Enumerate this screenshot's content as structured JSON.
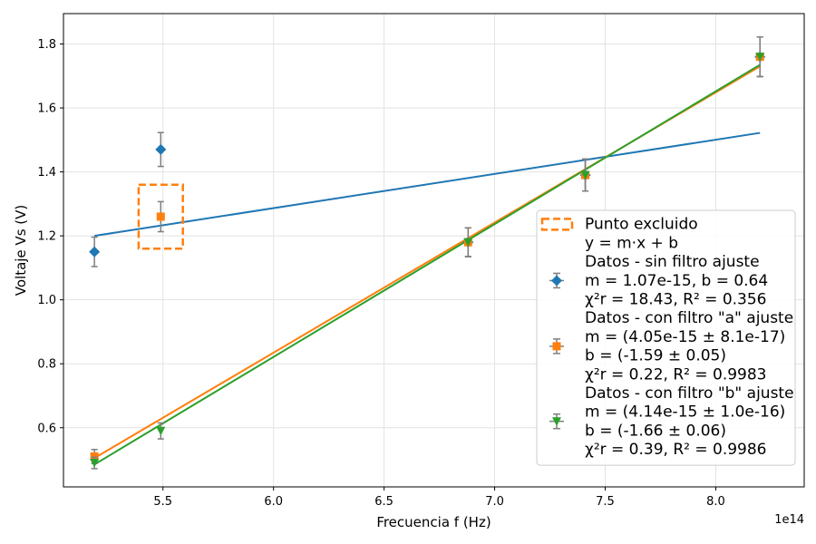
{
  "chart_data": {
    "type": "scatter",
    "xlabel": "Frecuencia f (Hz)",
    "ylabel": "Voltaje Vs (V)",
    "x_offset_label": "1e14",
    "xlim": [
      505000000000000.0,
      840000000000000.0
    ],
    "ylim": [
      0.415,
      1.895
    ],
    "xticks": [
      550000000000000.0,
      600000000000000.0,
      650000000000000.0,
      700000000000000.0,
      750000000000000.0,
      800000000000000.0
    ],
    "xtick_labels": [
      "5.5",
      "6.0",
      "6.5",
      "7.0",
      "7.5",
      "8.0"
    ],
    "yticks": [
      0.6,
      0.8,
      1.0,
      1.2,
      1.4,
      1.6,
      1.8
    ],
    "ytick_labels": [
      "0.6",
      "0.8",
      "1.0",
      "1.2",
      "1.4",
      "1.6",
      "1.8"
    ],
    "grid": true,
    "legend_position": "lower-right",
    "series": [
      {
        "name": "Datos - sin filtro ajuste",
        "color": "#1f77b4",
        "marker": "diamond",
        "points": [
          {
            "x": 519000000000000.0,
            "y": 1.15,
            "yerr": 0.046
          },
          {
            "x": 549000000000000.0,
            "y": 1.47,
            "yerr": 0.053
          },
          {
            "x": 688000000000000.0,
            "y": 1.18,
            "yerr": 0.045
          },
          {
            "x": 741000000000000.0,
            "y": 1.39,
            "yerr": 0.05
          },
          {
            "x": 820000000000000.0,
            "y": 1.76,
            "yerr": 0.062
          }
        ],
        "fit": {
          "x": [
            519000000000000.0,
            820000000000000.0
          ],
          "y": [
            1.2,
            1.522
          ]
        }
      },
      {
        "name": "Datos - con filtro \"a\" ajuste",
        "color": "#ff7f0e",
        "marker": "square",
        "points": [
          {
            "x": 519000000000000.0,
            "y": 0.51,
            "yerr": 0.022
          },
          {
            "x": 549000000000000.0,
            "y": 1.26,
            "yerr": 0.047
          },
          {
            "x": 688000000000000.0,
            "y": 1.18,
            "yerr": 0.045
          },
          {
            "x": 741000000000000.0,
            "y": 1.39,
            "yerr": 0.05
          },
          {
            "x": 820000000000000.0,
            "y": 1.76,
            "yerr": 0.062
          }
        ],
        "fit": {
          "x": [
            519000000000000.0,
            820000000000000.0
          ],
          "y": [
            0.505,
            1.73
          ]
        }
      },
      {
        "name": "Datos - con filtro \"b\" ajuste",
        "color": "#2ca02c",
        "marker": "triangle-down",
        "points": [
          {
            "x": 519000000000000.0,
            "y": 0.49,
            "yerr": 0.018
          },
          {
            "x": 549000000000000.0,
            "y": 0.59,
            "yerr": 0.025
          },
          {
            "x": 688000000000000.0,
            "y": 1.18,
            "yerr": 0.045
          },
          {
            "x": 741000000000000.0,
            "y": 1.39,
            "yerr": 0.05
          },
          {
            "x": 820000000000000.0,
            "y": 1.76,
            "yerr": 0.062
          }
        ],
        "fit": {
          "x": [
            519000000000000.0,
            820000000000000.0
          ],
          "y": [
            0.485,
            1.735
          ]
        }
      }
    ],
    "excluded_box": {
      "x": [
        539000000000000.0,
        559000000000000.0
      ],
      "y": [
        1.16,
        1.36
      ],
      "color": "#ff7f0e"
    },
    "legend": [
      {
        "kind": "box",
        "color": "#ff7f0e",
        "lines": [
          "Punto excluido"
        ]
      },
      {
        "kind": "text",
        "lines": [
          "y = m·x + b"
        ]
      },
      {
        "kind": "marker",
        "series": 0,
        "lines": [
          "Datos - sin filtro ajuste",
          "m = 1.07e-15, b = 0.64",
          "χ²r = 18.43, R² = 0.356"
        ]
      },
      {
        "kind": "marker",
        "series": 1,
        "lines": [
          "Datos - con filtro \"a\" ajuste",
          "m = (4.05e-15 ± 8.1e-17)",
          "b = (-1.59 ± 0.05)",
          "χ²r = 0.22, R² = 0.9983"
        ]
      },
      {
        "kind": "marker",
        "series": 2,
        "lines": [
          "Datos - con filtro \"b\" ajuste",
          "m = (4.14e-15 ± 1.0e-16)",
          "b = (-1.66 ± 0.06)",
          "χ²r = 0.39, R² = 0.9986"
        ]
      }
    ]
  }
}
